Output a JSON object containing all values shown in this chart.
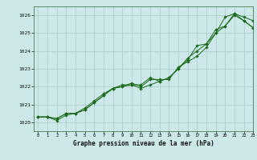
{
  "title": "Graphe pression niveau de la mer (hPa)",
  "bg_color": "#cce8e8",
  "grid_color": "#aacccc",
  "line_color": "#1a6b1a",
  "marker_color": "#1a6b1a",
  "xlim": [
    -0.5,
    23
  ],
  "ylim": [
    1019.5,
    1026.5
  ],
  "yticks": [
    1020,
    1021,
    1022,
    1023,
    1024,
    1025,
    1026
  ],
  "xticks": [
    0,
    1,
    2,
    3,
    4,
    5,
    6,
    7,
    8,
    9,
    10,
    11,
    12,
    13,
    14,
    15,
    16,
    17,
    18,
    19,
    20,
    21,
    22,
    23
  ],
  "series1_x": [
    0,
    1,
    2,
    3,
    4,
    5,
    6,
    7,
    8,
    9,
    10,
    11,
    12,
    13,
    14,
    15,
    16,
    17,
    18,
    19,
    20,
    21,
    22,
    23
  ],
  "series1_y": [
    1020.3,
    1020.3,
    1020.1,
    1020.4,
    1020.5,
    1020.7,
    1021.1,
    1021.5,
    1021.9,
    1022.0,
    1022.2,
    1022.0,
    1022.4,
    1022.4,
    1022.4,
    1023.1,
    1023.4,
    1023.7,
    1024.2,
    1025.0,
    1025.9,
    1026.1,
    1025.9,
    1025.7
  ],
  "series2_x": [
    0,
    1,
    2,
    3,
    4,
    5,
    6,
    7,
    8,
    9,
    10,
    11,
    12,
    13,
    14,
    15,
    16,
    17,
    18,
    19,
    20,
    21,
    22,
    23
  ],
  "series2_y": [
    1020.3,
    1020.3,
    1020.2,
    1020.5,
    1020.5,
    1020.8,
    1021.2,
    1021.6,
    1021.9,
    1022.1,
    1022.1,
    1022.1,
    1022.5,
    1022.3,
    1022.5,
    1023.0,
    1023.6,
    1024.0,
    1024.4,
    1025.2,
    1025.4,
    1026.1,
    1025.7,
    1025.3
  ],
  "series3_x": [
    0,
    1,
    2,
    3,
    4,
    5,
    6,
    7,
    8,
    9,
    10,
    11,
    12,
    13,
    14,
    15,
    16,
    17,
    18,
    19,
    20,
    21,
    22,
    23
  ],
  "series3_y": [
    1020.3,
    1020.3,
    1020.2,
    1020.5,
    1020.5,
    1020.7,
    1021.1,
    1021.5,
    1021.9,
    1022.0,
    1022.1,
    1021.9,
    1022.1,
    1022.3,
    1022.5,
    1023.0,
    1023.5,
    1024.3,
    1024.4,
    1025.0,
    1025.4,
    1026.0,
    1025.7,
    1025.3
  ]
}
